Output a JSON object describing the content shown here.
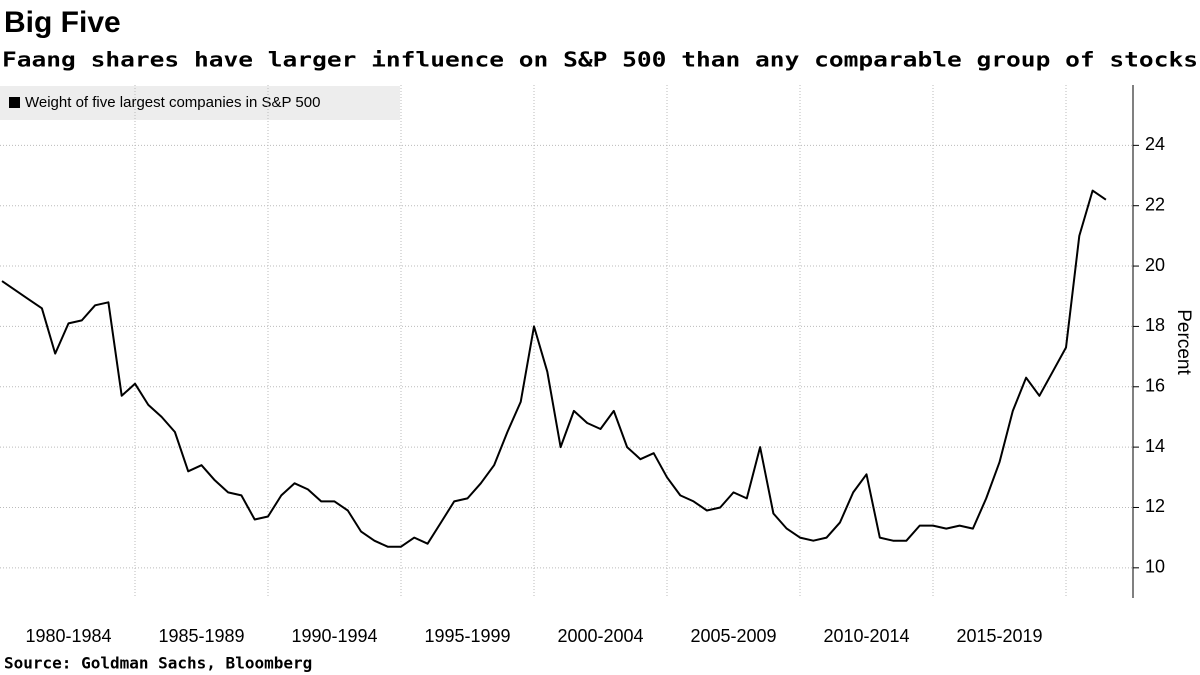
{
  "chart_data": {
    "type": "line",
    "title": "Big Five",
    "subtitle": "Faang shares have larger influence on S&P 500 than any comparable group of stocks",
    "source": "Source: Goldman Sachs, Bloomberg",
    "y_label": "Percent",
    "categories": [
      "1980-1984",
      "1985-1989",
      "1990-1994",
      "1995-1999",
      "2000-2004",
      "2005-2009",
      "2010-2014",
      "2015-2019",
      null
    ],
    "series": [
      {
        "name": "Weight of five largest companies in S&P 500",
        "color": "#000000",
        "values": [
          [
            19.5,
            19.2,
            18.9,
            18.6,
            17.1,
            18.1,
            18.2,
            18.7,
            18.8,
            15.7
          ],
          [
            16.1,
            15.4,
            15.0,
            14.5,
            13.2,
            13.4,
            12.9,
            12.5,
            12.4,
            11.6
          ],
          [
            11.7,
            12.4,
            12.8,
            12.6,
            12.2,
            12.2,
            11.9,
            11.2,
            10.9,
            10.7
          ],
          [
            10.7,
            11.0,
            10.8,
            11.5,
            12.2,
            12.3,
            12.8,
            13.4,
            14.5,
            15.5
          ],
          [
            18.0,
            16.5,
            14.0,
            15.2,
            14.8,
            14.6,
            15.2,
            14.0,
            13.6,
            13.8
          ],
          [
            13.0,
            12.4,
            12.2,
            11.9,
            12.0,
            12.5,
            12.3,
            14.0,
            11.8,
            11.3
          ],
          [
            11.0,
            10.9,
            11.0,
            11.5,
            12.5,
            13.1,
            11.0,
            10.9,
            10.9,
            11.4
          ],
          [
            11.4,
            11.3,
            11.4,
            11.3,
            12.3,
            13.5,
            15.2,
            16.3,
            15.7,
            16.5
          ],
          [
            17.3,
            21.0,
            22.5,
            22.2
          ]
        ]
      }
    ],
    "ylim": [
      9,
      26
    ],
    "yticks": [
      10,
      12,
      14,
      16,
      18,
      20,
      22,
      24
    ],
    "grid": true
  }
}
